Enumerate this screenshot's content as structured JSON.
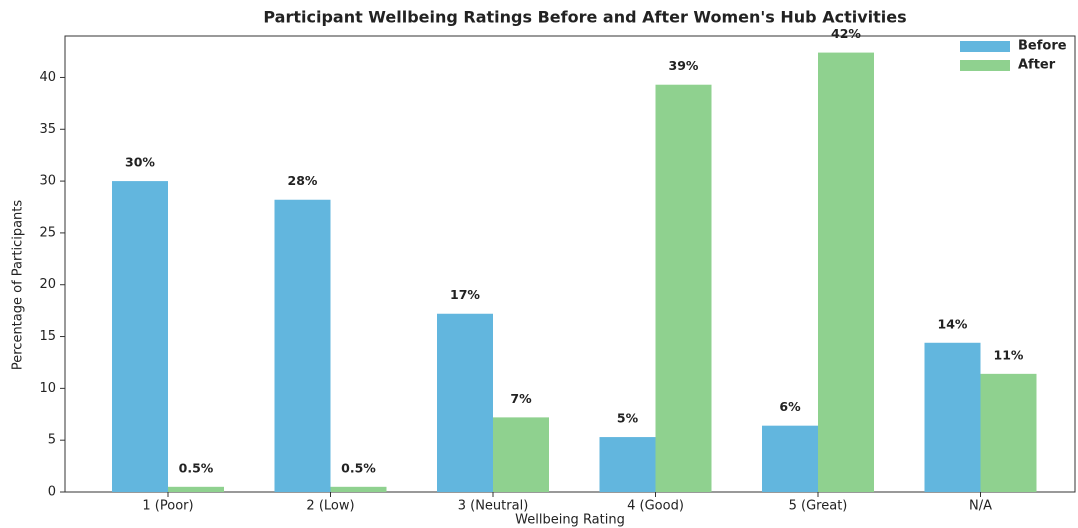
{
  "chart_data": {
    "type": "bar",
    "title": "Participant Wellbeing Ratings Before and After Women's Hub Activities",
    "x_label": "Wellbeing Rating",
    "y_label": "Percentage of Participants",
    "categories": [
      "1 (Poor)",
      "2 (Low)",
      "3 (Neutral)",
      "4 (Good)",
      "5 (Great)",
      "N/A"
    ],
    "series": [
      {
        "name": "Before",
        "color": "#62b6de",
        "values": [
          30,
          28.2,
          17.2,
          5.3,
          6.4,
          14.4
        ],
        "value_labels": [
          "30%",
          "28%",
          "17%",
          "5%",
          "6%",
          "14%"
        ]
      },
      {
        "name": "After",
        "color": "#8fd18f",
        "values": [
          0.5,
          0.5,
          7.2,
          39.3,
          42.4,
          11.4
        ],
        "value_labels": [
          "0.5%",
          "0.5%",
          "7%",
          "39%",
          "42%",
          "11%"
        ]
      }
    ],
    "ylim": [
      0,
      44
    ],
    "yticks": [
      0,
      5,
      10,
      15,
      20,
      25,
      30,
      35,
      40
    ],
    "legend": "upper right"
  }
}
